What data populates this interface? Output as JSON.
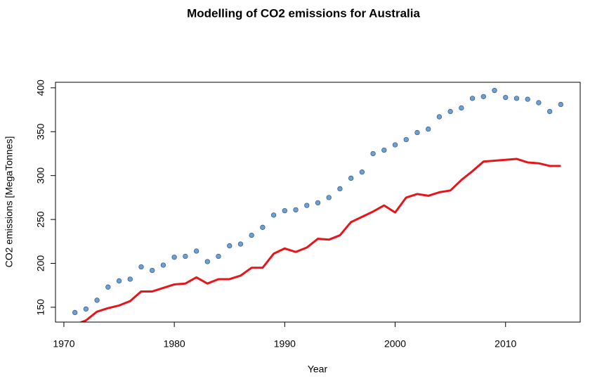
{
  "chart_data": {
    "type": "line",
    "title": "Modelling of CO2 emissions for Australia",
    "xlabel": "Year",
    "ylabel": "CO2 emissions [MegaTonnes]",
    "x": [
      1971,
      1972,
      1973,
      1974,
      1975,
      1976,
      1977,
      1978,
      1979,
      1980,
      1981,
      1982,
      1983,
      1984,
      1985,
      1986,
      1987,
      1988,
      1989,
      1990,
      1991,
      1992,
      1993,
      1994,
      1995,
      1996,
      1997,
      1998,
      1999,
      2000,
      2001,
      2002,
      2003,
      2004,
      2005,
      2006,
      2007,
      2008,
      2009,
      2010,
      2011,
      2012,
      2013,
      2014,
      2015
    ],
    "series": [
      {
        "mode": "points",
        "color": "#6a9fd8",
        "values": [
          144,
          148,
          158,
          173,
          180,
          182,
          196,
          192,
          198,
          207,
          208,
          214,
          202,
          208,
          220,
          222,
          232,
          241,
          255,
          260,
          261,
          266,
          269,
          275,
          285,
          297,
          304,
          325,
          329,
          335,
          341,
          349,
          353,
          367,
          373,
          377,
          388,
          390,
          397,
          389,
          388,
          387,
          383,
          373,
          381
        ]
      },
      {
        "mode": "line",
        "color": "#e8141a",
        "values": [
          130,
          135,
          145,
          149,
          152,
          157,
          168,
          168,
          172,
          176,
          177,
          184,
          177,
          182,
          182,
          186,
          195,
          195,
          211,
          217,
          213,
          218,
          228,
          227,
          232,
          247,
          253,
          259,
          266,
          258,
          275,
          279,
          277,
          281,
          283,
          295,
          305,
          316,
          317,
          318,
          319,
          315,
          314,
          311,
          311
        ]
      }
    ],
    "xlim": [
      1969.24,
      2016.76
    ],
    "ylim": [
      133.1,
      406.3
    ],
    "xticks": [
      1970,
      1980,
      1990,
      2000,
      2010
    ],
    "yticks": [
      150,
      200,
      250,
      300,
      350,
      400
    ]
  }
}
